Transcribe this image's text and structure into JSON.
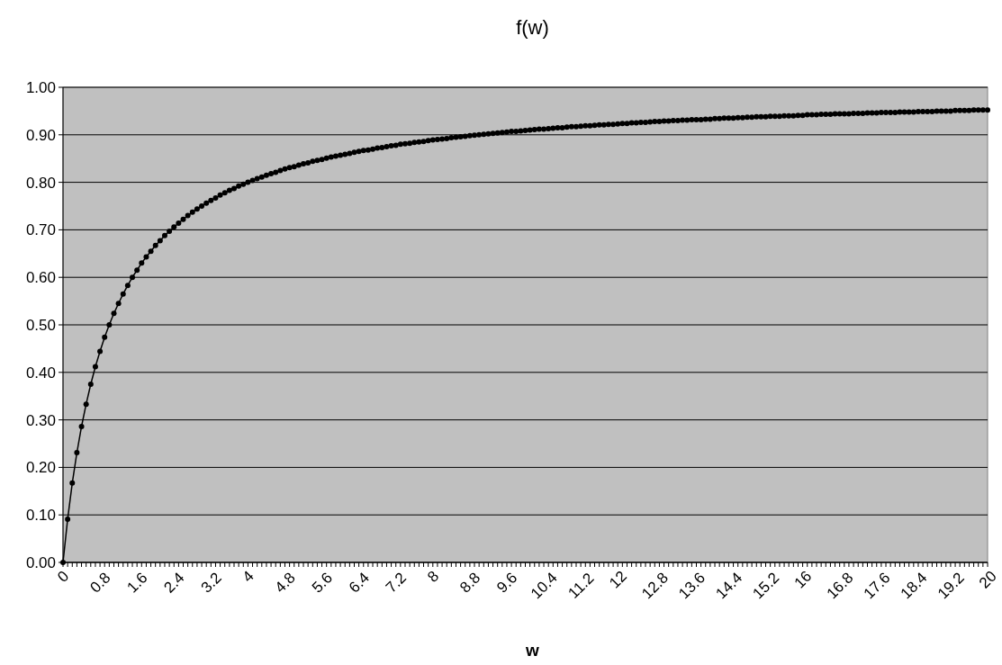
{
  "chart_data": {
    "type": "line",
    "title": "f(w)",
    "xlabel": "w",
    "categories": [
      "0",
      null,
      null,
      null,
      null,
      null,
      null,
      null,
      "0.8",
      null,
      null,
      null,
      null,
      null,
      null,
      null,
      "1.6",
      null,
      null,
      null,
      null,
      null,
      null,
      null,
      "2.4",
      null,
      null,
      null,
      null,
      null,
      null,
      null,
      "3.2",
      null,
      null,
      null,
      null,
      null,
      null,
      null,
      "4",
      null,
      null,
      null,
      null,
      null,
      null,
      null,
      "4.8",
      null,
      null,
      null,
      null,
      null,
      null,
      null,
      "5.6",
      null,
      null,
      null,
      null,
      null,
      null,
      null,
      "6.4",
      null,
      null,
      null,
      null,
      null,
      null,
      null,
      "7.2",
      null,
      null,
      null,
      null,
      null,
      null,
      null,
      "8",
      null,
      null,
      null,
      null,
      null,
      null,
      null,
      "8.8",
      null,
      null,
      null,
      null,
      null,
      null,
      null,
      "9.6",
      null,
      null,
      null,
      null,
      null,
      null,
      null,
      "10.4",
      null,
      null,
      null,
      null,
      null,
      null,
      null,
      "11.2",
      null,
      null,
      null,
      null,
      null,
      null,
      null,
      "12",
      null,
      null,
      null,
      null,
      null,
      null,
      null,
      "12.8",
      null,
      null,
      null,
      null,
      null,
      null,
      null,
      "13.6",
      null,
      null,
      null,
      null,
      null,
      null,
      null,
      "14.4",
      null,
      null,
      null,
      null,
      null,
      null,
      null,
      "15.2",
      null,
      null,
      null,
      null,
      null,
      null,
      null,
      "16",
      null,
      null,
      null,
      null,
      null,
      null,
      null,
      "16.8",
      null,
      null,
      null,
      null,
      null,
      null,
      null,
      "17.6",
      null,
      null,
      null,
      null,
      null,
      null,
      null,
      "18.4",
      null,
      null,
      null,
      null,
      null,
      null,
      null,
      "19.2",
      null,
      null,
      null,
      null,
      null,
      null,
      null,
      "20"
    ],
    "series": [
      {
        "color": "#000000",
        "values": [
          0,
          0.091,
          0.167,
          0.231,
          0.286,
          0.333,
          0.375,
          0.412,
          0.444,
          0.474,
          0.5,
          0.524,
          0.545,
          0.565,
          0.583,
          0.6,
          0.615,
          0.63,
          0.643,
          0.655,
          0.667,
          0.677,
          0.688,
          0.697,
          0.706,
          0.714,
          0.722,
          0.73,
          0.737,
          0.744,
          0.75,
          0.756,
          0.762,
          0.767,
          0.773,
          0.778,
          0.783,
          0.787,
          0.792,
          0.796,
          0.8,
          0.804,
          0.808,
          0.811,
          0.815,
          0.818,
          0.821,
          0.825,
          0.828,
          0.831,
          0.833,
          0.836,
          0.839,
          0.841,
          0.844,
          0.846,
          0.848,
          0.851,
          0.853,
          0.855,
          0.857,
          0.859,
          0.861,
          0.863,
          0.865,
          0.867,
          0.868,
          0.87,
          0.872,
          0.873,
          0.875,
          0.877,
          0.878,
          0.88,
          0.881,
          0.882,
          0.884,
          0.885,
          0.886,
          0.888,
          0.889,
          0.89,
          0.891,
          0.892,
          0.894,
          0.895,
          0.896,
          0.897,
          0.898,
          0.899,
          0.9,
          0.901,
          0.902,
          0.903,
          0.904,
          0.905,
          0.906,
          0.907,
          0.907,
          0.908,
          0.909,
          0.91,
          0.911,
          0.912,
          0.912,
          0.913,
          0.914,
          0.915,
          0.915,
          0.916,
          0.917,
          0.917,
          0.918,
          0.919,
          0.919,
          0.92,
          0.921,
          0.921,
          0.922,
          0.922,
          0.923,
          0.924,
          0.924,
          0.925,
          0.925,
          0.926,
          0.926,
          0.927,
          0.928,
          0.928,
          0.929,
          0.929,
          0.93,
          0.93,
          0.931,
          0.931,
          0.932,
          0.932,
          0.932,
          0.933,
          0.933,
          0.934,
          0.934,
          0.935,
          0.935,
          0.935,
          0.936,
          0.936,
          0.937,
          0.937,
          0.938,
          0.938,
          0.938,
          0.939,
          0.939,
          0.939,
          0.94,
          0.94,
          0.94,
          0.941,
          0.941,
          0.942,
          0.942,
          0.942,
          0.943,
          0.943,
          0.943,
          0.944,
          0.944,
          0.944,
          0.944,
          0.945,
          0.945,
          0.945,
          0.946,
          0.946,
          0.946,
          0.947,
          0.947,
          0.947,
          0.947,
          0.948,
          0.948,
          0.948,
          0.948,
          0.949,
          0.949,
          0.949,
          0.949,
          0.95,
          0.95,
          0.95,
          0.95,
          0.951,
          0.951,
          0.951,
          0.951,
          0.952,
          0.952,
          0.952,
          0.952
        ]
      }
    ],
    "ylim": [
      0,
      1
    ],
    "yticks": [
      {
        "value": 0,
        "label": "0.00"
      },
      {
        "value": 0.1,
        "label": "0.10"
      },
      {
        "value": 0.2,
        "label": "0.20"
      },
      {
        "value": 0.3,
        "label": "0.30"
      },
      {
        "value": 0.4,
        "label": "0.40"
      },
      {
        "value": 0.5,
        "label": "0.50"
      },
      {
        "value": 0.6,
        "label": "0.60"
      },
      {
        "value": 0.7,
        "label": "0.70"
      },
      {
        "value": 0.8,
        "label": "0.80"
      },
      {
        "value": 0.9,
        "label": "0.90"
      },
      {
        "value": 1,
        "label": "1.00"
      }
    ],
    "grid": "y",
    "marker": "circle",
    "line_style": "solid"
  }
}
